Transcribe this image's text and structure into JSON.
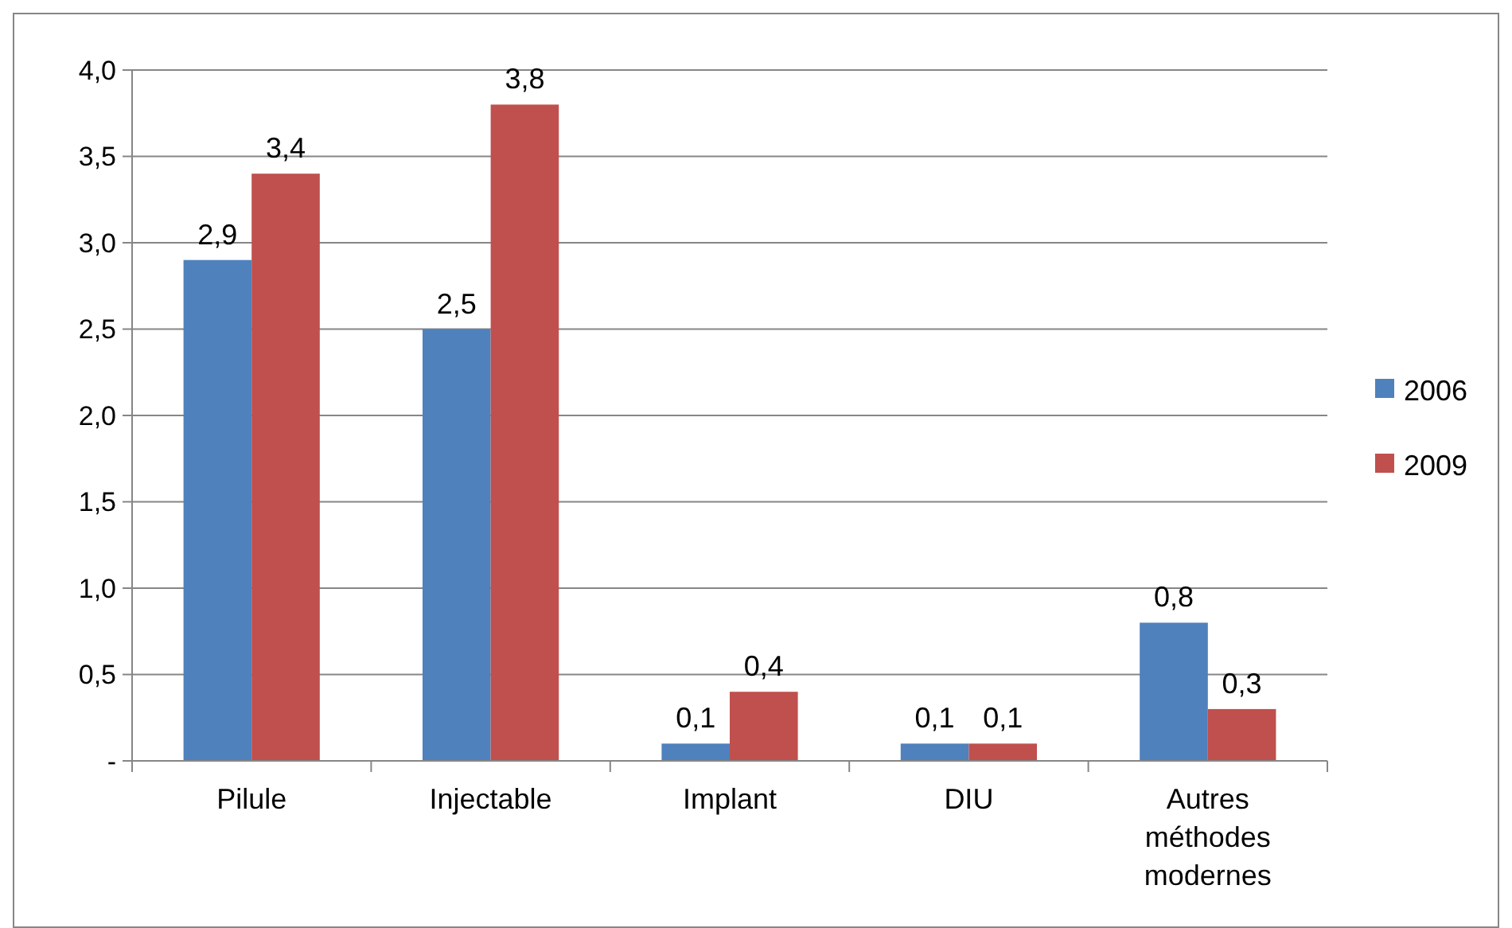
{
  "chart_data": {
    "type": "bar",
    "categories": [
      "Pilule",
      "Injectable",
      "Implant",
      "DIU",
      "Autres méthodes modernes"
    ],
    "series": [
      {
        "name": "2006",
        "color": "#4f81bd",
        "values": [
          2.9,
          2.5,
          0.1,
          0.1,
          0.8
        ],
        "value_labels": [
          "2,9",
          "2,5",
          "0,1",
          "0,1",
          "0,8"
        ]
      },
      {
        "name": "2009",
        "color": "#c0504d",
        "values": [
          3.4,
          3.8,
          0.4,
          0.1,
          0.3
        ],
        "value_labels": [
          "3,4",
          "3,8",
          "0,4",
          "0,1",
          "0,3"
        ]
      }
    ],
    "ylim": [
      0,
      4
    ],
    "yticks": [
      {
        "value": 0,
        "label": "-"
      },
      {
        "value": 0.5,
        "label": "0,5"
      },
      {
        "value": 1,
        "label": "1,0"
      },
      {
        "value": 1.5,
        "label": "1,5"
      },
      {
        "value": 2,
        "label": "2,0"
      },
      {
        "value": 2.5,
        "label": "2,5"
      },
      {
        "value": 3,
        "label": "3,0"
      },
      {
        "value": 3.5,
        "label": "3,5"
      },
      {
        "value": 4,
        "label": "4,0"
      }
    ],
    "grid": "y",
    "legend": "right"
  }
}
